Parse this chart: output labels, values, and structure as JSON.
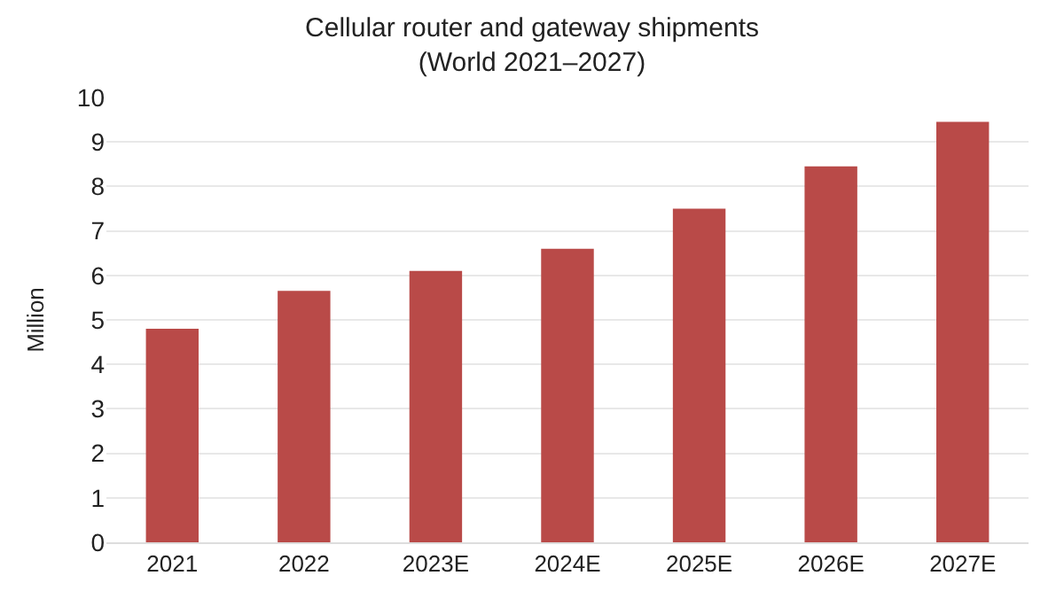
{
  "chart_data": {
    "type": "bar",
    "title": "Cellular router and gateway shipments",
    "subtitle": "(World 2021–2027)",
    "ylabel": "Million",
    "categories": [
      "2021",
      "2022",
      "2023E",
      "2024E",
      "2025E",
      "2026E",
      "2027E"
    ],
    "values": [
      4.8,
      5.65,
      6.1,
      6.6,
      7.5,
      8.45,
      9.45
    ],
    "color": "#b94a48",
    "ylim": [
      0,
      10
    ],
    "yticks": [
      0,
      1,
      2,
      3,
      4,
      5,
      6,
      7,
      8,
      9,
      10
    ],
    "grid": "y",
    "legend": false
  }
}
